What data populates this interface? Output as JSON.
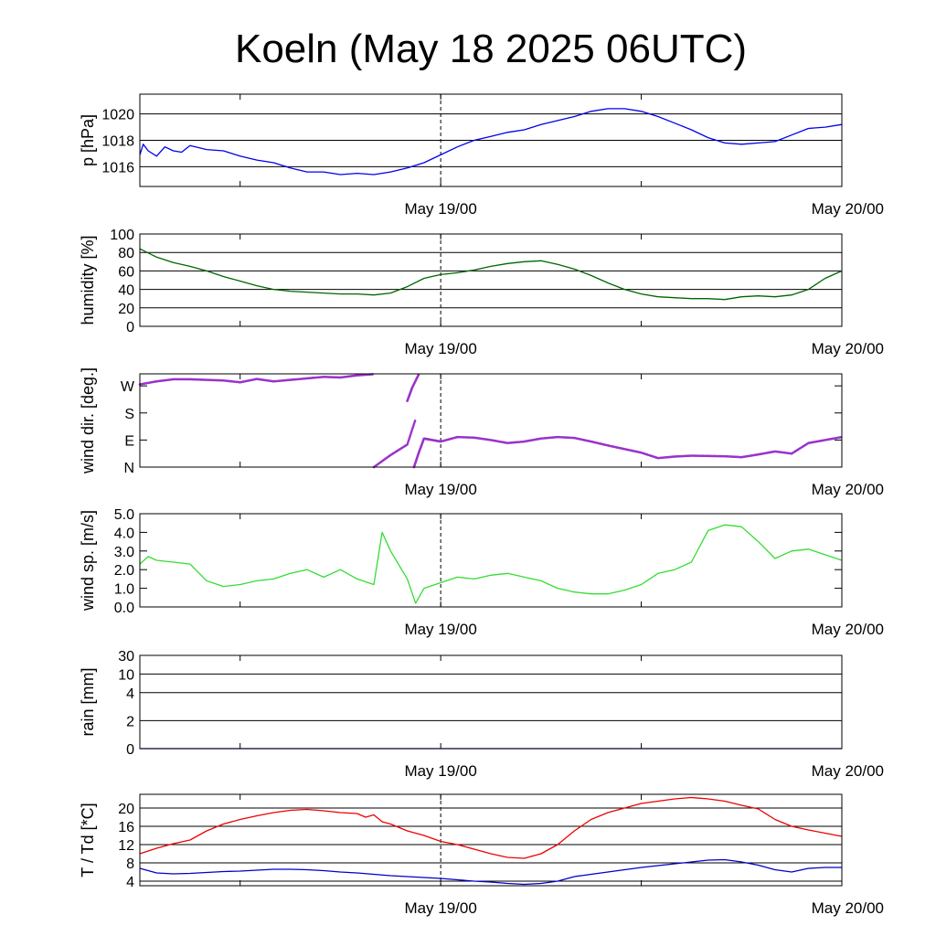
{
  "title": "Koeln (May 18 2025 06UTC)",
  "chart_data": [
    {
      "type": "line",
      "ylabel": "p [hPa]",
      "ylim": [
        1014.5,
        1021.5
      ],
      "yticks": [
        1016,
        1018,
        1020
      ],
      "tick_labels": [
        "1016",
        "1018",
        "1020"
      ],
      "grid": true,
      "x_date_labels": [
        "May 19/00",
        "May 20/00"
      ],
      "x_unit": "hours since May 18 2025 06UTC",
      "series": [
        {
          "color": "#0000ee",
          "x": [
            0,
            0.2,
            0.5,
            1,
            1.5,
            2,
            2.5,
            3,
            4,
            5,
            6,
            7,
            8,
            9,
            10,
            11,
            12,
            13,
            14,
            15,
            16,
            17,
            18,
            19,
            20,
            21,
            22,
            23,
            24,
            25,
            26,
            27,
            28,
            29,
            30,
            31,
            32,
            33,
            34,
            35,
            36,
            37,
            38,
            39,
            40,
            41,
            42
          ],
          "values": [
            1016.9,
            1017.7,
            1017.2,
            1016.8,
            1017.5,
            1017.2,
            1017.1,
            1017.6,
            1017.3,
            1017.2,
            1016.8,
            1016.5,
            1016.3,
            1015.9,
            1015.6,
            1015.6,
            1015.4,
            1015.5,
            1015.4,
            1015.6,
            1015.9,
            1016.3,
            1016.9,
            1017.5,
            1018.0,
            1018.3,
            1018.6,
            1018.8,
            1019.2,
            1019.5,
            1019.8,
            1020.2,
            1020.4,
            1020.4,
            1020.2,
            1019.8,
            1019.3,
            1018.8,
            1018.2,
            1017.8,
            1017.7,
            1017.8,
            1017.9,
            1018.4,
            1018.9,
            1019.0,
            1019.2
          ]
        }
      ]
    },
    {
      "type": "line",
      "ylabel": "humidity [%]",
      "ylim": [
        0,
        100
      ],
      "yticks": [
        0,
        20,
        40,
        60,
        80,
        100
      ],
      "tick_labels": [
        "0",
        "20",
        "40",
        "60",
        "80",
        "100"
      ],
      "grid": true,
      "x_date_labels": [
        "May 19/00",
        "May 20/00"
      ],
      "series": [
        {
          "color": "#006600",
          "x": [
            0,
            1,
            2,
            3,
            4,
            5,
            6,
            7,
            8,
            9,
            10,
            11,
            12,
            13,
            14,
            15,
            16,
            17,
            18,
            19,
            20,
            21,
            22,
            23,
            24,
            25,
            26,
            27,
            28,
            29,
            30,
            31,
            32,
            33,
            34,
            35,
            36,
            37,
            38,
            39,
            40,
            41,
            42
          ],
          "values": [
            84,
            75,
            69,
            65,
            60,
            54,
            49,
            44,
            40,
            38,
            37,
            36,
            35,
            35,
            34,
            36,
            43,
            52,
            56,
            58,
            61,
            65,
            68,
            70,
            71,
            67,
            62,
            55,
            47,
            40,
            35,
            32,
            31,
            30,
            30,
            29,
            32,
            33,
            32,
            34,
            40,
            52,
            60
          ]
        }
      ]
    },
    {
      "type": "scatter",
      "ylabel": "wind dir. [deg.]",
      "ylim": [
        0,
        310
      ],
      "yticks": [
        0,
        90,
        180,
        270
      ],
      "tick_labels": [
        "N",
        "E",
        "S",
        "W"
      ],
      "grid": false,
      "x_date_labels": [
        "May 19/00",
        "May 20/00"
      ],
      "series": [
        {
          "color": "#9933cc",
          "segments": [
            {
              "x": [
                0,
                1,
                2,
                3,
                4,
                5,
                6,
                7,
                8,
                9,
                10,
                11,
                12,
                13,
                14
              ],
              "values": [
                275,
                285,
                292,
                292,
                290,
                288,
                282,
                293,
                285,
                290,
                295,
                300,
                298,
                305,
                309
              ]
            },
            {
              "x": [
                14,
                15,
                16,
                16.5
              ],
              "values": [
                0,
                40,
                75,
                160
              ]
            },
            {
              "x": [
                16,
                16.3,
                16.7
              ],
              "values": [
                220,
                265,
                310
              ]
            },
            {
              "x": [
                16.4,
                16.7,
                17,
                17.5,
                18,
                19,
                20,
                21,
                22,
                23,
                24,
                25,
                26,
                27,
                28,
                29,
                30,
                31,
                32,
                33,
                34,
                35,
                36,
                37,
                38,
                39,
                40,
                41,
                42
              ],
              "values": [
                0,
                50,
                95,
                90,
                85,
                100,
                98,
                90,
                80,
                85,
                95,
                100,
                97,
                85,
                72,
                60,
                48,
                30,
                35,
                38,
                37,
                36,
                33,
                42,
                52,
                45,
                80,
                90,
                100
              ]
            }
          ]
        }
      ]
    },
    {
      "type": "line",
      "ylabel": "wind sp. [m/s]",
      "ylim": [
        0,
        5
      ],
      "yticks": [
        0,
        1,
        2,
        3,
        4,
        5
      ],
      "tick_labels": [
        "0.0",
        "1.0",
        "2.0",
        "3.0",
        "4.0",
        "5.0"
      ],
      "grid": false,
      "x_date_labels": [
        "May 19/00",
        "May 20/00"
      ],
      "series": [
        {
          "color": "#33dd33",
          "x": [
            0,
            0.5,
            1,
            2,
            3,
            4,
            5,
            6,
            7,
            8,
            9,
            10,
            11,
            12,
            13,
            14,
            14.5,
            15,
            16,
            16.5,
            17,
            18,
            19,
            20,
            21,
            22,
            23,
            24,
            25,
            26,
            27,
            28,
            29,
            30,
            31,
            32,
            33,
            34,
            35,
            36,
            37,
            38,
            39,
            40,
            41,
            42
          ],
          "values": [
            2.3,
            2.7,
            2.5,
            2.4,
            2.3,
            1.4,
            1.1,
            1.2,
            1.4,
            1.5,
            1.8,
            2.0,
            1.6,
            2.0,
            1.5,
            1.2,
            4.0,
            3.0,
            1.5,
            0.2,
            1.0,
            1.3,
            1.6,
            1.5,
            1.7,
            1.8,
            1.6,
            1.4,
            1.0,
            0.8,
            0.7,
            0.7,
            0.9,
            1.2,
            1.8,
            2.0,
            2.4,
            4.1,
            4.4,
            4.3,
            3.5,
            2.6,
            3.0,
            3.1,
            2.8,
            2.5
          ]
        }
      ]
    },
    {
      "type": "line",
      "ylabel": "rain [mm]",
      "ylim": [
        0,
        5
      ],
      "yticks": [
        0,
        1.5,
        3,
        4,
        5
      ],
      "tick_labels": [
        "0",
        "2",
        "4",
        "10",
        "30"
      ],
      "grid": true,
      "x_date_labels": [
        "May 19/00",
        "May 20/00"
      ],
      "series": [
        {
          "color": "#0000ee",
          "x": [
            0,
            42
          ],
          "values": [
            0,
            0
          ]
        }
      ]
    },
    {
      "type": "line",
      "ylabel": "T / Td [*C]",
      "ylim": [
        3,
        23
      ],
      "yticks": [
        4,
        8,
        12,
        16,
        20
      ],
      "tick_labels": [
        "4",
        "8",
        "12",
        "16",
        "20"
      ],
      "grid": true,
      "x_date_labels": [
        "May 19/00",
        "May 20/00"
      ],
      "series": [
        {
          "color": "#ee0000",
          "x": [
            0,
            1,
            2,
            3,
            4,
            5,
            6,
            7,
            8,
            9,
            10,
            11,
            12,
            13,
            13.5,
            14,
            14.5,
            15,
            16,
            17,
            18,
            19,
            20,
            21,
            22,
            23,
            24,
            25,
            26,
            27,
            28,
            29,
            30,
            31,
            32,
            33,
            34,
            35,
            36,
            37,
            38,
            39,
            40,
            41,
            42
          ],
          "values": [
            10.0,
            11.2,
            12.2,
            13.0,
            15.0,
            16.5,
            17.5,
            18.3,
            19.0,
            19.5,
            19.7,
            19.4,
            19.0,
            18.8,
            18.0,
            18.5,
            17.0,
            16.5,
            15.0,
            14.0,
            12.7,
            12.0,
            11.0,
            10.0,
            9.2,
            9.0,
            10.0,
            12.0,
            15.0,
            17.5,
            19.0,
            20.0,
            21.0,
            21.5,
            22.0,
            22.3,
            22.0,
            21.5,
            20.6,
            19.8,
            17.5,
            16.0,
            15.2,
            14.5,
            13.8
          ]
        },
        {
          "color": "#0000cc",
          "x": [
            0,
            1,
            2,
            3,
            4,
            5,
            6,
            7,
            8,
            9,
            10,
            11,
            12,
            13,
            14,
            15,
            16,
            17,
            18,
            19,
            20,
            21,
            22,
            23,
            24,
            25,
            26,
            27,
            28,
            29,
            30,
            31,
            32,
            33,
            34,
            35,
            36,
            37,
            38,
            39,
            40,
            41,
            42
          ],
          "values": [
            6.8,
            5.8,
            5.6,
            5.7,
            5.9,
            6.1,
            6.2,
            6.4,
            6.6,
            6.6,
            6.5,
            6.3,
            6.0,
            5.8,
            5.5,
            5.2,
            5.0,
            4.8,
            4.6,
            4.3,
            4.0,
            3.8,
            3.5,
            3.3,
            3.5,
            4.0,
            5.0,
            5.5,
            6.0,
            6.5,
            7.0,
            7.4,
            7.8,
            8.2,
            8.6,
            8.7,
            8.2,
            7.5,
            6.5,
            6.0,
            6.8,
            7.0,
            7.0
          ]
        }
      ]
    }
  ]
}
